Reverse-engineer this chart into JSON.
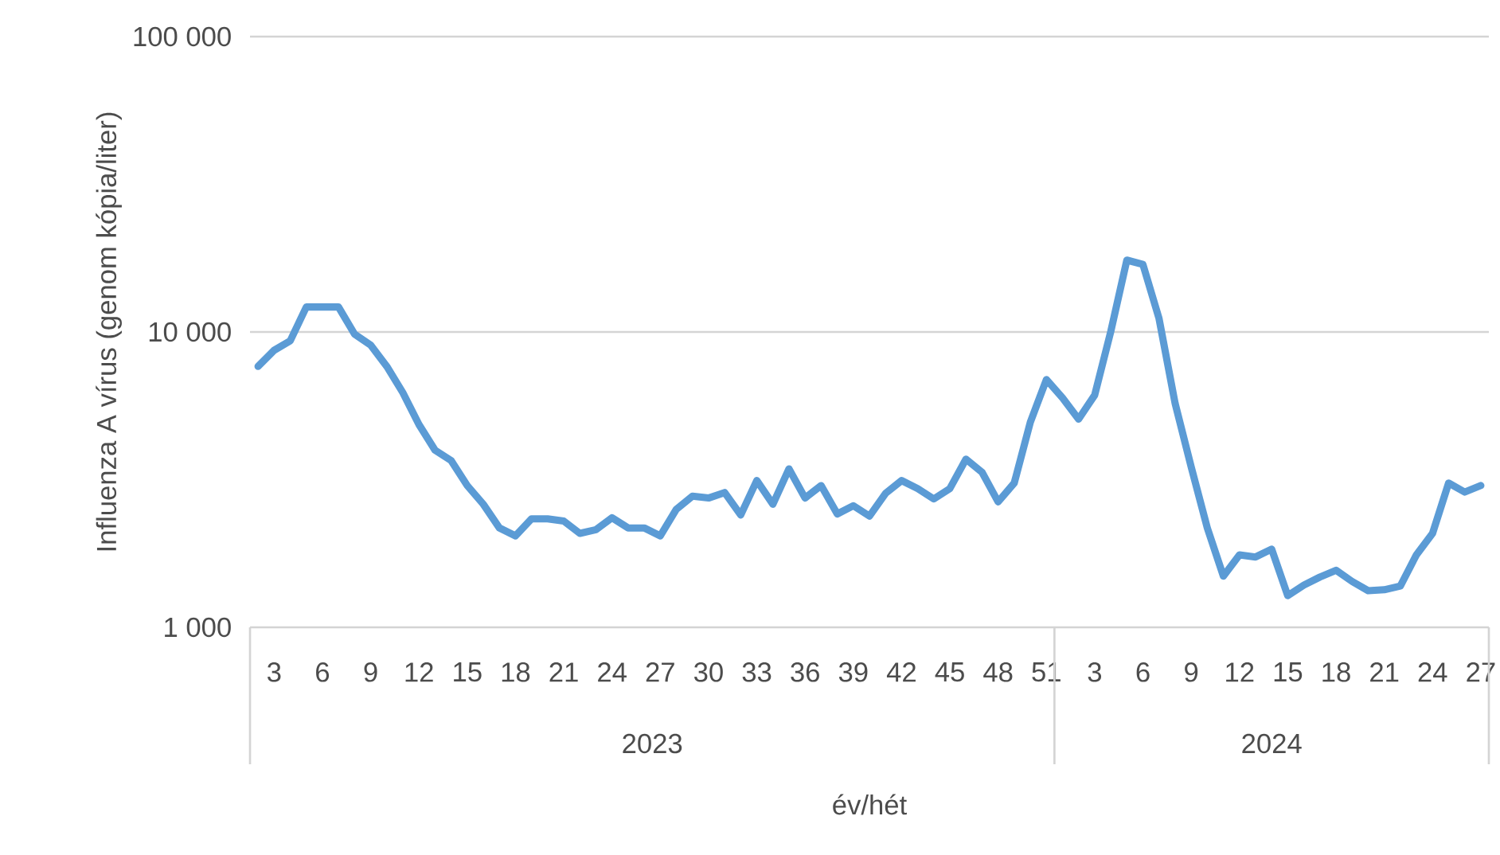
{
  "chart_data": {
    "type": "line",
    "xlabel": "év/hét",
    "ylabel": "Influenza A vírus (genom kópia/liter)",
    "categories": [
      null,
      "3",
      null,
      null,
      "6",
      null,
      null,
      "9",
      null,
      null,
      "12",
      null,
      null,
      "15",
      null,
      null,
      "18",
      null,
      null,
      "21",
      null,
      null,
      "24",
      null,
      null,
      "27",
      null,
      null,
      "30",
      null,
      null,
      "33",
      null,
      null,
      "36",
      null,
      null,
      "39",
      null,
      null,
      "42",
      null,
      null,
      "45",
      null,
      null,
      "48",
      null,
      null,
      "51",
      null,
      null,
      "3",
      null,
      null,
      "6",
      null,
      null,
      "9",
      null,
      null,
      "12",
      null,
      null,
      "15",
      null,
      null,
      "18",
      null,
      null,
      "21",
      null,
      null,
      "24",
      null,
      null,
      "27"
    ],
    "series": [
      {
        "color": "#5b9bd5",
        "values": [
          7650,
          8670,
          9330,
          12150,
          12150,
          12150,
          9830,
          9030,
          7650,
          6230,
          4860,
          3980,
          3670,
          3020,
          2610,
          2170,
          2040,
          2330,
          2330,
          2290,
          2080,
          2140,
          2350,
          2170,
          2170,
          2040,
          2510,
          2780,
          2740,
          2860,
          2400,
          3140,
          2610,
          3440,
          2740,
          3020,
          2420,
          2580,
          2380,
          2840,
          3140,
          2950,
          2720,
          2950,
          3710,
          3350,
          2660,
          3080,
          4950,
          6900,
          5980,
          5070,
          6110,
          10030,
          17510,
          16930,
          11110,
          5730,
          3490,
          2170,
          1490,
          1760,
          1730,
          1840,
          1280,
          1390,
          1480,
          1560,
          1430,
          1330,
          1340,
          1380,
          1760,
          2080,
          3080,
          2870,
          3020
        ]
      }
    ],
    "log": "y",
    "ylim": [
      1000,
      100000
    ],
    "yticks": [
      {
        "value": 1000,
        "label": "1 000"
      },
      {
        "value": 10000,
        "label": "10 000"
      },
      {
        "value": 100000,
        "label": "100 000"
      }
    ],
    "grid": "y",
    "marker": "none",
    "line_style": "solid",
    "annotations": [
      "2023",
      "2024"
    ]
  }
}
